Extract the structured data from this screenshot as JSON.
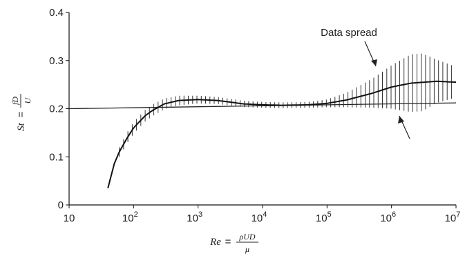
{
  "chart_data": {
    "type": "line",
    "x_scale": "log",
    "xlim": [
      10,
      10000000
    ],
    "ylim": [
      0,
      0.4
    ],
    "x_ticks": [
      {
        "value": 10,
        "base": "10",
        "exp": ""
      },
      {
        "value": 100,
        "base": "10",
        "exp": "2"
      },
      {
        "value": 1000,
        "base": "10",
        "exp": "3"
      },
      {
        "value": 10000,
        "base": "10",
        "exp": "4"
      },
      {
        "value": 100000,
        "base": "10",
        "exp": "5"
      },
      {
        "value": 1000000,
        "base": "10",
        "exp": "6"
      },
      {
        "value": 10000000,
        "base": "10",
        "exp": "7"
      }
    ],
    "y_ticks": [
      {
        "value": 0,
        "label": "0"
      },
      {
        "value": 0.1,
        "label": "0.1"
      },
      {
        "value": 0.2,
        "label": "0.2"
      },
      {
        "value": 0.3,
        "label": "0.3"
      },
      {
        "value": 0.4,
        "label": "0.4"
      }
    ],
    "ylabel": {
      "lhs": "St",
      "eq": "=",
      "num": "fD",
      "den": "U"
    },
    "xlabel": {
      "lhs": "Re",
      "eq": "=",
      "num": "ρUD",
      "den": "μ"
    },
    "annotation": "Data spread",
    "grid": false,
    "series": [
      {
        "role": "mean",
        "x": [
          40,
          50,
          60,
          80,
          100,
          150,
          200,
          300,
          500,
          1000,
          2000,
          3000,
          5000,
          10000,
          20000,
          50000,
          100000,
          200000,
          500000,
          1000000,
          2000000,
          5000000,
          10000000
        ],
        "y": [
          0.035,
          0.085,
          0.11,
          0.14,
          0.16,
          0.185,
          0.197,
          0.21,
          0.217,
          0.219,
          0.217,
          0.214,
          0.21,
          0.208,
          0.207,
          0.208,
          0.211,
          0.218,
          0.232,
          0.245,
          0.253,
          0.257,
          0.255
        ]
      },
      {
        "role": "reference",
        "x": [
          10,
          10000000
        ],
        "y": [
          0.2,
          0.212
        ]
      }
    ],
    "spread": {
      "x_from": 60,
      "x_to": 8500000,
      "n": 78,
      "x": [
        60,
        100,
        200,
        500,
        1000,
        3000,
        10000,
        50000,
        100000,
        200000,
        500000,
        1000000,
        2000000,
        3000000,
        5000000,
        8500000
      ],
      "half_width": [
        0.01,
        0.012,
        0.012,
        0.01,
        0.008,
        0.007,
        0.006,
        0.006,
        0.008,
        0.015,
        0.03,
        0.045,
        0.06,
        0.06,
        0.045,
        0.035
      ]
    }
  }
}
